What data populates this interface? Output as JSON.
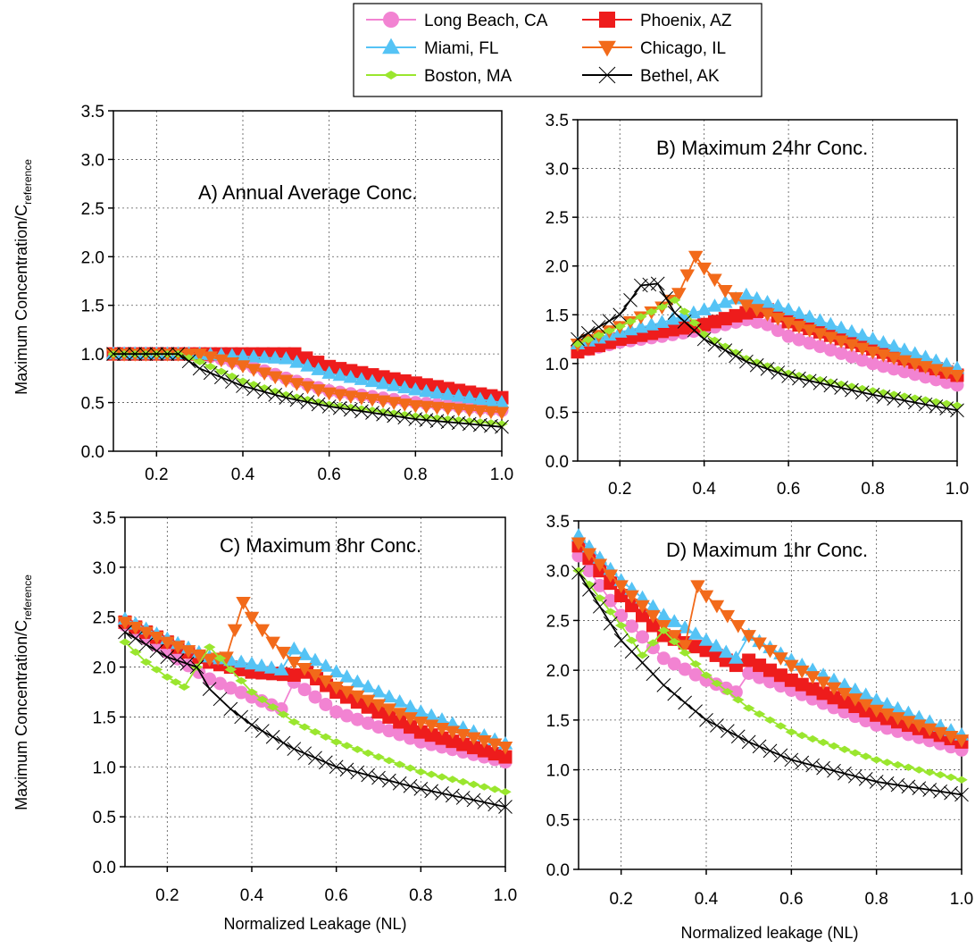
{
  "colors": {
    "long_beach": "#f283d2",
    "phoenix": "#ee1c1c",
    "miami": "#55c3f5",
    "chicago": "#f26a1a",
    "boston": "#9ae62e",
    "bethel": "#000000"
  },
  "legend": [
    {
      "id": "long_beach",
      "label": "Long Beach, CA",
      "marker": "circle"
    },
    {
      "id": "phoenix",
      "label": "Phoenix, AZ",
      "marker": "square"
    },
    {
      "id": "miami",
      "label": "Miami, FL",
      "marker": "triangle-up"
    },
    {
      "id": "chicago",
      "label": "Chicago, IL",
      "marker": "triangle-down"
    },
    {
      "id": "boston",
      "label": "Boston, MA",
      "marker": "diamond"
    },
    {
      "id": "bethel",
      "label": "Bethel, AK",
      "marker": "bowtie"
    }
  ],
  "ylabel_main": "Maximum Concentration/C",
  "ylabel_sub": "reference",
  "chart_data": [
    {
      "type": "line",
      "title": "A) Annual Average Conc.",
      "xlabel": "",
      "xlim": [
        0.1,
        1.0
      ],
      "ylim": [
        0.0,
        3.5
      ],
      "xticks": [
        "0.2",
        "0.4",
        "0.6",
        "0.8",
        "1.0"
      ],
      "yticks": [
        "0.0",
        "0.5",
        "1.0",
        "1.5",
        "2.0",
        "2.5",
        "3.0",
        "3.5"
      ],
      "grid": true,
      "series": [
        {
          "name": "Phoenix, AZ",
          "x": [
            0.1,
            0.3,
            0.52,
            0.6,
            0.8,
            1.0
          ],
          "y": [
            1.0,
            1.0,
            1.0,
            0.87,
            0.7,
            0.55
          ]
        },
        {
          "name": "Miami, FL",
          "x": [
            0.1,
            0.3,
            0.5,
            0.6,
            0.8,
            1.0
          ],
          "y": [
            1.0,
            1.0,
            0.95,
            0.8,
            0.63,
            0.5
          ]
        },
        {
          "name": "Long Beach, CA",
          "x": [
            0.1,
            0.3,
            0.4,
            0.5,
            0.6,
            0.8,
            1.0
          ],
          "y": [
            1.0,
            1.0,
            0.9,
            0.75,
            0.62,
            0.5,
            0.42
          ]
        },
        {
          "name": "Chicago, IL",
          "x": [
            0.1,
            0.3,
            0.4,
            0.5,
            0.6,
            0.8,
            1.0
          ],
          "y": [
            1.0,
            1.0,
            0.88,
            0.73,
            0.6,
            0.47,
            0.4
          ]
        },
        {
          "name": "Boston, MA",
          "x": [
            0.1,
            0.25,
            0.3,
            0.4,
            0.5,
            0.6,
            0.8,
            1.0
          ],
          "y": [
            1.0,
            1.0,
            0.92,
            0.72,
            0.58,
            0.48,
            0.36,
            0.28
          ]
        },
        {
          "name": "Bethel, AK",
          "x": [
            0.1,
            0.25,
            0.3,
            0.4,
            0.5,
            0.6,
            0.8,
            1.0
          ],
          "y": [
            1.0,
            1.0,
            0.85,
            0.67,
            0.55,
            0.46,
            0.33,
            0.25
          ]
        }
      ]
    },
    {
      "type": "line",
      "title": "B) Maximum 24hr Conc.",
      "xlabel": "",
      "xlim": [
        0.1,
        1.0
      ],
      "ylim": [
        0.0,
        3.5
      ],
      "xticks": [
        "0.2",
        "0.4",
        "0.6",
        "0.8",
        "1.0"
      ],
      "yticks": [
        "0.0",
        "0.5",
        "1.0",
        "1.5",
        "2.0",
        "2.5",
        "3.0",
        "3.5"
      ],
      "grid": true,
      "series": [
        {
          "name": "Long Beach, CA",
          "x": [
            0.1,
            0.2,
            0.3,
            0.4,
            0.5,
            0.55,
            0.6,
            0.8,
            1.0
          ],
          "y": [
            1.12,
            1.22,
            1.28,
            1.35,
            1.45,
            1.4,
            1.28,
            1.0,
            0.78
          ]
        },
        {
          "name": "Phoenix, AZ",
          "x": [
            0.1,
            0.2,
            0.3,
            0.4,
            0.5,
            0.55,
            0.6,
            0.8,
            1.0
          ],
          "y": [
            1.12,
            1.25,
            1.33,
            1.4,
            1.52,
            1.55,
            1.43,
            1.15,
            0.88
          ]
        },
        {
          "name": "Miami, FL",
          "x": [
            0.1,
            0.2,
            0.3,
            0.4,
            0.5,
            0.6,
            0.8,
            1.0
          ],
          "y": [
            1.2,
            1.32,
            1.42,
            1.55,
            1.7,
            1.55,
            1.25,
            0.95
          ]
        },
        {
          "name": "Chicago, IL",
          "x": [
            0.1,
            0.2,
            0.3,
            0.34,
            0.38,
            0.4,
            0.45,
            0.5,
            0.6,
            0.8,
            1.0
          ],
          "y": [
            1.2,
            1.38,
            1.58,
            1.72,
            2.1,
            1.98,
            1.75,
            1.6,
            1.42,
            1.12,
            0.88
          ]
        },
        {
          "name": "Boston, MA",
          "x": [
            0.1,
            0.2,
            0.3,
            0.33,
            0.4,
            0.5,
            0.6,
            0.8,
            1.0
          ],
          "y": [
            1.2,
            1.38,
            1.58,
            1.65,
            1.3,
            1.05,
            0.9,
            0.72,
            0.57
          ]
        },
        {
          "name": "Bethel, AK",
          "x": [
            0.1,
            0.2,
            0.25,
            0.29,
            0.33,
            0.4,
            0.5,
            0.6,
            0.8,
            1.0
          ],
          "y": [
            1.25,
            1.5,
            1.8,
            1.82,
            1.52,
            1.25,
            1.02,
            0.87,
            0.68,
            0.52
          ]
        }
      ]
    },
    {
      "type": "line",
      "title": "C) Maximum 8hr Conc.",
      "xlabel": "Normalized Leakage (NL)",
      "xlim": [
        0.1,
        1.0
      ],
      "ylim": [
        0.0,
        3.5
      ],
      "xticks": [
        "0.2",
        "0.4",
        "0.6",
        "0.8",
        "1.0"
      ],
      "yticks": [
        "0.0",
        "0.5",
        "1.0",
        "1.5",
        "2.0",
        "2.5",
        "3.0",
        "3.5"
      ],
      "grid": true,
      "series": [
        {
          "name": "Long Beach, CA",
          "x": [
            0.1,
            0.2,
            0.3,
            0.4,
            0.47,
            0.5,
            0.6,
            0.8,
            1.0
          ],
          "y": [
            2.42,
            2.15,
            1.88,
            1.7,
            1.58,
            1.85,
            1.55,
            1.25,
            1.05
          ]
        },
        {
          "name": "Phoenix, AZ",
          "x": [
            0.1,
            0.2,
            0.3,
            0.4,
            0.5,
            0.53,
            0.6,
            0.8,
            1.0
          ],
          "y": [
            2.45,
            2.25,
            2.05,
            1.95,
            1.92,
            1.95,
            1.75,
            1.35,
            1.1
          ]
        },
        {
          "name": "Miami, FL",
          "x": [
            0.1,
            0.2,
            0.3,
            0.4,
            0.47,
            0.5,
            0.6,
            0.8,
            1.0
          ],
          "y": [
            2.48,
            2.28,
            2.1,
            2.03,
            1.97,
            2.18,
            1.95,
            1.55,
            1.23
          ]
        },
        {
          "name": "Chicago, IL",
          "x": [
            0.1,
            0.2,
            0.3,
            0.34,
            0.38,
            0.4,
            0.45,
            0.5,
            0.6,
            0.8,
            1.0
          ],
          "y": [
            2.45,
            2.25,
            2.08,
            2.1,
            2.65,
            2.5,
            2.25,
            2.05,
            1.8,
            1.45,
            1.2
          ]
        },
        {
          "name": "Boston, MA",
          "x": [
            0.1,
            0.15,
            0.2,
            0.24,
            0.3,
            0.4,
            0.5,
            0.6,
            0.8,
            1.0
          ],
          "y": [
            2.25,
            2.05,
            1.9,
            1.8,
            2.2,
            1.75,
            1.45,
            1.25,
            0.95,
            0.75
          ]
        },
        {
          "name": "Bethel, AK",
          "x": [
            0.1,
            0.2,
            0.27,
            0.3,
            0.35,
            0.4,
            0.5,
            0.6,
            0.8,
            1.0
          ],
          "y": [
            2.35,
            2.1,
            2.0,
            1.78,
            1.58,
            1.42,
            1.18,
            1.0,
            0.78,
            0.6
          ]
        }
      ]
    },
    {
      "type": "line",
      "title": "D) Maximum 1hr Conc.",
      "xlabel": "Normalized leakage (NL)",
      "xlim": [
        0.1,
        1.0
      ],
      "ylim": [
        0.0,
        3.5
      ],
      "xticks": [
        "0.2",
        "0.4",
        "0.6",
        "0.8",
        "1.0"
      ],
      "yticks": [
        "0.0",
        "0.5",
        "1.0",
        "1.5",
        "2.0",
        "2.5",
        "3.0",
        "3.5"
      ],
      "grid": true,
      "series": [
        {
          "name": "Long Beach, CA",
          "x": [
            0.1,
            0.2,
            0.3,
            0.4,
            0.47,
            0.5,
            0.6,
            0.8,
            1.0
          ],
          "y": [
            3.15,
            2.55,
            2.12,
            1.9,
            1.78,
            1.97,
            1.8,
            1.45,
            1.2
          ]
        },
        {
          "name": "Phoenix, AZ",
          "x": [
            0.1,
            0.2,
            0.3,
            0.4,
            0.47,
            0.5,
            0.6,
            0.8,
            1.0
          ],
          "y": [
            3.25,
            2.75,
            2.35,
            2.2,
            2.05,
            2.1,
            1.9,
            1.55,
            1.28
          ]
        },
        {
          "name": "Miami, FL",
          "x": [
            0.1,
            0.2,
            0.3,
            0.4,
            0.47,
            0.5,
            0.6,
            0.8,
            1.0
          ],
          "y": [
            3.35,
            2.9,
            2.55,
            2.3,
            2.12,
            2.35,
            2.1,
            1.7,
            1.35
          ]
        },
        {
          "name": "Chicago, IL",
          "x": [
            0.1,
            0.2,
            0.3,
            0.35,
            0.38,
            0.4,
            0.45,
            0.5,
            0.6,
            0.8,
            1.0
          ],
          "y": [
            3.28,
            2.85,
            2.45,
            2.25,
            2.85,
            2.75,
            2.55,
            2.35,
            2.05,
            1.6,
            1.3
          ]
        },
        {
          "name": "Boston, MA",
          "x": [
            0.1,
            0.2,
            0.25,
            0.3,
            0.4,
            0.5,
            0.6,
            0.8,
            1.0
          ],
          "y": [
            3.0,
            2.45,
            2.15,
            2.4,
            1.95,
            1.62,
            1.38,
            1.1,
            0.9
          ]
        },
        {
          "name": "Bethel, AK",
          "x": [
            0.1,
            0.2,
            0.3,
            0.4,
            0.5,
            0.6,
            0.8,
            1.0
          ],
          "y": [
            2.98,
            2.3,
            1.85,
            1.5,
            1.28,
            1.1,
            0.88,
            0.75
          ]
        }
      ]
    }
  ]
}
